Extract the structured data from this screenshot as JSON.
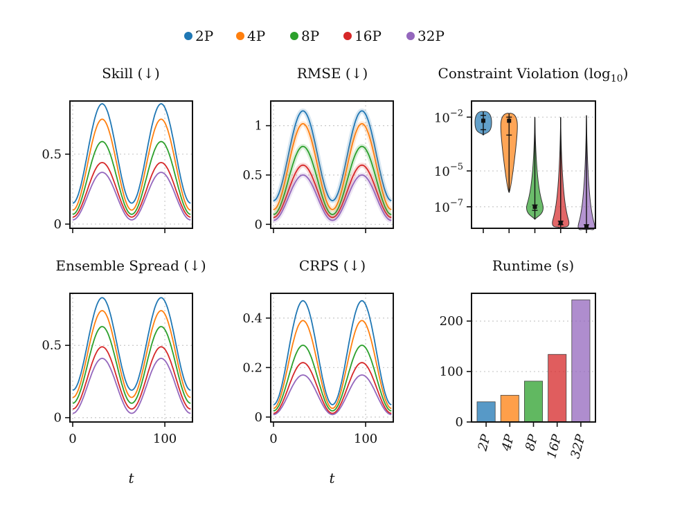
{
  "legend": [
    "2P",
    "4P",
    "8P",
    "16P",
    "32P"
  ],
  "colors": [
    "#1f77b4",
    "#ff7f0e",
    "#2ca02c",
    "#d62728",
    "#9467bd"
  ],
  "chart_data": [
    {
      "id": "skill",
      "type": "line",
      "title": "Skill (↓)",
      "xlabel": "",
      "ylabel": "",
      "xlim": [
        -3,
        130
      ],
      "ylim": [
        -0.03,
        0.88
      ],
      "yticks": [
        0,
        0.5
      ],
      "ytick_labels": [
        "0",
        "0.5"
      ],
      "xticks": [
        0,
        100
      ],
      "xtick_labels": [
        "",
        ""
      ],
      "x_period": 64,
      "series": [
        {
          "name": "2P",
          "min": 0.15,
          "max": 0.86
        },
        {
          "name": "4P",
          "min": 0.1,
          "max": 0.75
        },
        {
          "name": "8P",
          "min": 0.07,
          "max": 0.59
        },
        {
          "name": "16P",
          "min": 0.05,
          "max": 0.44
        },
        {
          "name": "32P",
          "min": 0.03,
          "max": 0.37
        }
      ]
    },
    {
      "id": "rmse",
      "type": "line",
      "title": "RMSE (↓)",
      "xlabel": "",
      "ylabel": "",
      "xlim": [
        -3,
        130
      ],
      "ylim": [
        -0.04,
        1.25
      ],
      "yticks": [
        0,
        0.5,
        1
      ],
      "ytick_labels": [
        "0",
        "0.5",
        "1"
      ],
      "xticks": [
        0,
        100
      ],
      "xtick_labels": [
        "",
        ""
      ],
      "x_period": 64,
      "series": [
        {
          "name": "2P",
          "min": 0.24,
          "max": 1.15
        },
        {
          "name": "4P",
          "min": 0.15,
          "max": 1.02
        },
        {
          "name": "8P",
          "min": 0.1,
          "max": 0.79
        },
        {
          "name": "16P",
          "min": 0.07,
          "max": 0.6
        },
        {
          "name": "32P",
          "min": 0.04,
          "max": 0.5
        }
      ]
    },
    {
      "id": "violation",
      "type": "violin",
      "title": "Constraint Violation (log",
      "title_sub": "10",
      "title_end": ")",
      "xlabel": "",
      "ylabel": "",
      "ylim_log10": [
        -8.2,
        -1.1
      ],
      "yticks_log10": [
        -2,
        -5,
        -7
      ],
      "ytick_labels": [
        {
          "base": "10",
          "exp": "−2"
        },
        {
          "base": "10",
          "exp": "−5"
        },
        {
          "base": "10",
          "exp": "−7"
        }
      ],
      "categories": [
        "2P",
        "4P",
        "8P",
        "16P",
        "32P"
      ],
      "violins": [
        {
          "name": "2P",
          "min": -3.0,
          "max": -1.7,
          "median": -2.2,
          "q1": -2.7,
          "q3": -1.9
        },
        {
          "name": "4P",
          "min": -6.2,
          "max": -1.8,
          "median": -2.2,
          "q1": -3.0,
          "q3": -2.0
        },
        {
          "name": "8P",
          "min": -7.7,
          "max": -2.0,
          "median": -7.0,
          "q1": -7.2,
          "q3": -6.9
        },
        {
          "name": "16P",
          "min": -8.2,
          "max": -2.0,
          "median": -7.9,
          "q1": -8.0,
          "q3": -7.8
        },
        {
          "name": "32P",
          "min": -8.3,
          "max": -1.9,
          "median": -8.1,
          "q1": -8.2,
          "q3": -8.0
        }
      ]
    },
    {
      "id": "spread",
      "type": "line",
      "title": "Ensemble Spread (↓)",
      "xlabel": "t",
      "ylabel": "",
      "xlim": [
        -3,
        130
      ],
      "ylim": [
        -0.03,
        0.86
      ],
      "yticks": [
        0,
        0.5
      ],
      "ytick_labels": [
        "0",
        "0.5"
      ],
      "xticks": [
        0,
        100
      ],
      "xtick_labels": [
        "0",
        "100"
      ],
      "x_period": 64,
      "series": [
        {
          "name": "2P",
          "min": 0.19,
          "max": 0.83
        },
        {
          "name": "4P",
          "min": 0.14,
          "max": 0.74
        },
        {
          "name": "8P",
          "min": 0.1,
          "max": 0.63
        },
        {
          "name": "16P",
          "min": 0.06,
          "max": 0.49
        },
        {
          "name": "32P",
          "min": 0.03,
          "max": 0.41
        }
      ]
    },
    {
      "id": "crps",
      "type": "line",
      "title": "CRPS (↓)",
      "xlabel": "t",
      "ylabel": "",
      "xlim": [
        -3,
        130
      ],
      "ylim": [
        -0.02,
        0.5
      ],
      "yticks": [
        0,
        0.2,
        0.4
      ],
      "ytick_labels": [
        "0",
        "0.2",
        "0.4"
      ],
      "xticks": [
        0,
        100
      ],
      "xtick_labels": [
        "0",
        "100"
      ],
      "x_period": 64,
      "series": [
        {
          "name": "2P",
          "min": 0.05,
          "max": 0.47
        },
        {
          "name": "4P",
          "min": 0.035,
          "max": 0.39
        },
        {
          "name": "8P",
          "min": 0.025,
          "max": 0.29
        },
        {
          "name": "16P",
          "min": 0.015,
          "max": 0.22
        },
        {
          "name": "32P",
          "min": 0.01,
          "max": 0.17
        }
      ]
    },
    {
      "id": "runtime",
      "type": "bar",
      "title": "Runtime (s)",
      "xlabel": "",
      "ylabel": "",
      "ylim": [
        0,
        255
      ],
      "yticks": [
        0,
        100,
        200
      ],
      "ytick_labels": [
        "0",
        "100",
        "200"
      ],
      "categories": [
        "2P",
        "4P",
        "8P",
        "16P",
        "32P"
      ],
      "values": [
        40,
        53,
        81,
        134,
        242
      ]
    }
  ]
}
